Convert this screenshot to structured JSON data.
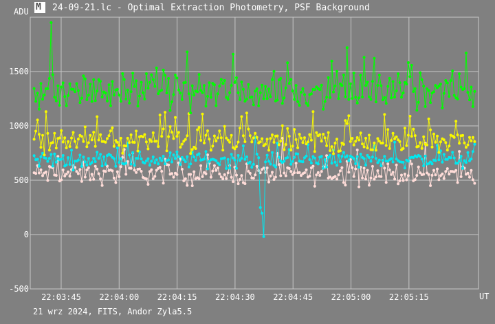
{
  "window": {
    "icon": "lightcurve-app-icon",
    "title": "24-09-21.lc - Optimal Extraction Photometry, PSF Background"
  },
  "footer": {
    "text": "21 wrz 2024, FITS, Andor Zyla5.5"
  },
  "chart_data": {
    "type": "line",
    "title": "24-09-21.lc - Optimal Extraction Photometry, PSF Background",
    "xlabel": "UT",
    "ylabel": "ADU",
    "x_ticks": [
      "22:03:45",
      "22:04:00",
      "22:04:15",
      "22:04:30",
      "22:04:45",
      "22:05:00",
      "22:05:15"
    ],
    "y_ticks": [
      "-500",
      "0",
      "500",
      "1000",
      "1500"
    ],
    "ylim": [
      -500,
      2000
    ],
    "xlim": [
      "22:03:37",
      "22:05:33"
    ],
    "grid": true,
    "background_color": "#808080",
    "series": [
      {
        "color": "#ffdcd8",
        "values_summary": {
          "mean": 560,
          "spread": 90
        }
      },
      {
        "color": "#00e8f0",
        "values_summary": {
          "mean": 690,
          "spread": 70
        },
        "annotation_dip": {
          "x": "22:04:37",
          "y": -50
        }
      },
      {
        "color": "#f8f800",
        "values_summary": {
          "mean": 860,
          "spread": 110
        }
      },
      {
        "color": "#00ff00",
        "values_summary": {
          "mean": 1320,
          "spread": 140
        },
        "peak": {
          "x": "22:03:39",
          "y": 1950
        }
      }
    ]
  }
}
